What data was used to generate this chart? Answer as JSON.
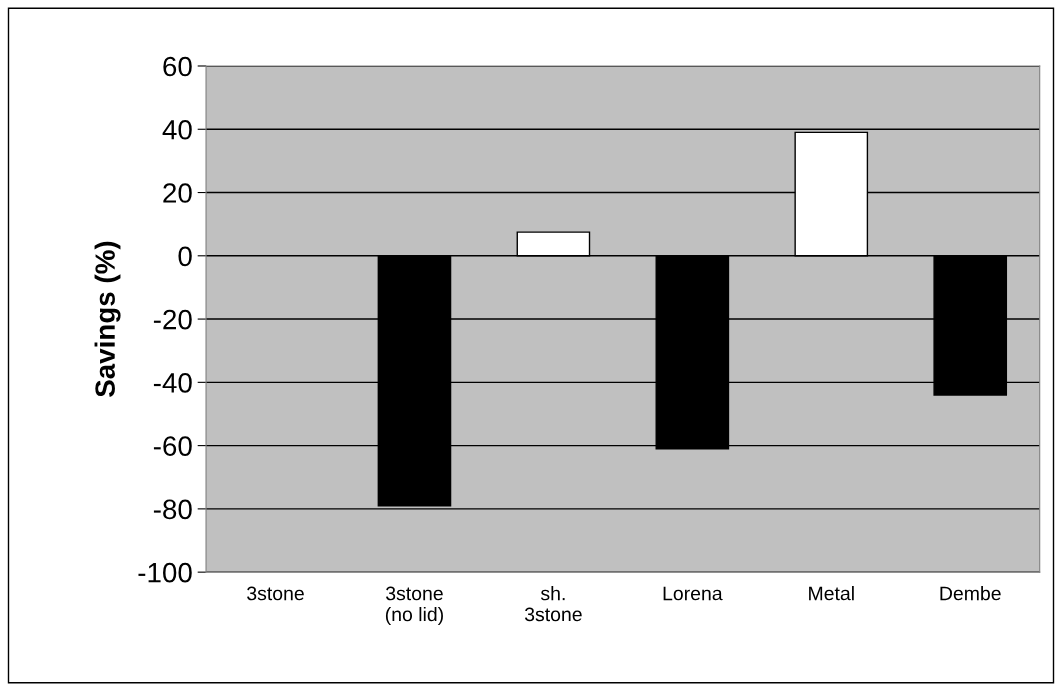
{
  "chart_data": {
    "type": "bar",
    "ylabel": "Savings (%)",
    "categories": [
      "3stone",
      "3stone\n(no lid)",
      "sh.\n3stone",
      "Lorena",
      "Metal",
      "Dembe"
    ],
    "values": [
      0,
      -79,
      7.5,
      -61,
      39,
      -44
    ],
    "colors": [
      "#ffffff",
      "#000000",
      "#ffffff",
      "#000000",
      "#ffffff",
      "#000000"
    ],
    "ylim": [
      -100,
      60
    ],
    "yticks": [
      -100,
      -80,
      -60,
      -40,
      -20,
      0,
      20,
      40,
      60
    ],
    "grid": "y"
  }
}
